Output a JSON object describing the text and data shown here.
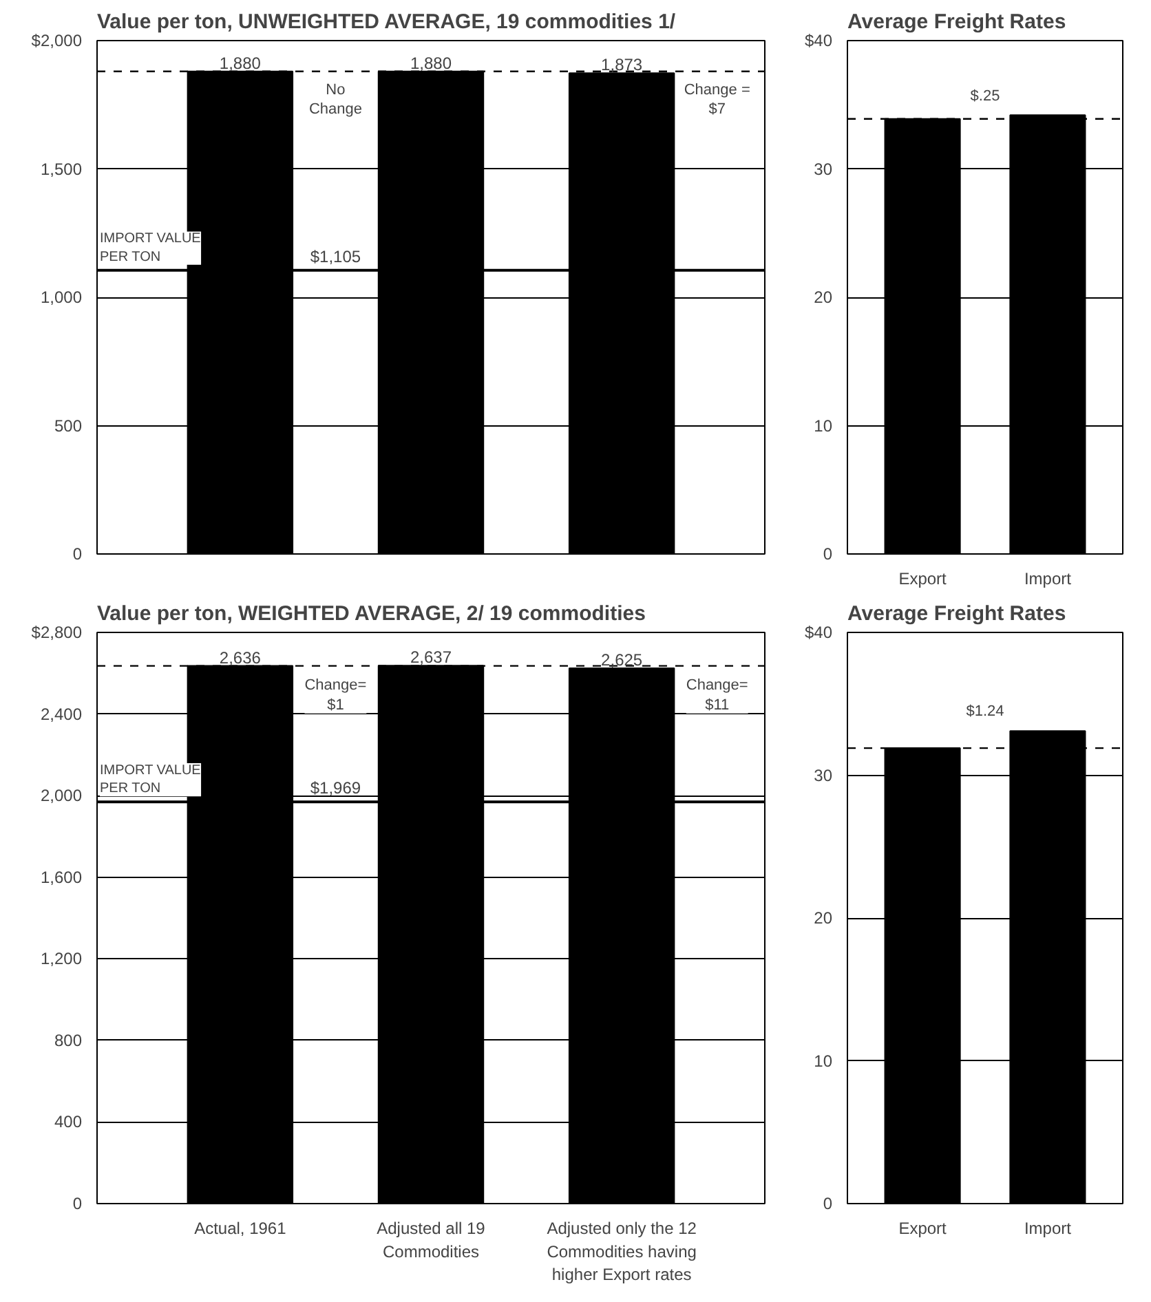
{
  "chart_data": [
    {
      "type": "bar",
      "title": "Value per ton, UNWEIGHTED AVERAGE, 19 commodities 1/",
      "categories": [
        "Actual, 1961",
        "Adjusted all 19 Commodities",
        "Adjusted only the 12 Commodities having higher Export rates"
      ],
      "values": [
        1880,
        1880,
        1873
      ],
      "value_labels": [
        "1,880",
        "1,880",
        "1,873"
      ],
      "color": "#000000",
      "ylim": [
        0,
        2000
      ],
      "yticks": [
        {
          "value": 0,
          "label": "0"
        },
        {
          "value": 500,
          "label": "500"
        },
        {
          "value": 1000,
          "label": "1,000"
        },
        {
          "value": 1500,
          "label": "1,500"
        },
        {
          "value": 2000,
          "label": "$2,000"
        }
      ],
      "grid": "y",
      "tick_labels": "y",
      "ref_lines": [
        {
          "axis": "y",
          "value": 1105,
          "label": "$1,105",
          "color": "#000000",
          "line_style": "solid"
        },
        {
          "axis": "y",
          "value": 1880,
          "color": "#000000",
          "line_style": "dashed"
        }
      ],
      "annotations": [
        {
          "text": "IMPORT VALUE PER TON",
          "y": 1105
        },
        "No Change",
        "Change = $7"
      ]
    },
    {
      "type": "bar",
      "title": "Average Freight Rates",
      "categories": [
        "Export",
        "Import"
      ],
      "values": [
        33.9,
        34.2
      ],
      "color": "#000000",
      "ylim": [
        0,
        40
      ],
      "yticks": [
        {
          "value": 0,
          "label": "0"
        },
        10,
        20,
        30,
        {
          "value": 40,
          "label": "$40"
        }
      ],
      "grid": "y",
      "ref_lines": [
        {
          "axis": "y",
          "value": 33.9,
          "color": "#000000",
          "line_style": "dashed"
        }
      ],
      "annotations": [
        "$.25"
      ]
    },
    {
      "type": "bar",
      "title": "Value per ton, WEIGHTED AVERAGE, 2/ 19 commodities",
      "categories": [
        "Actual, 1961",
        "Adjusted all 19 Commodities",
        "Adjusted only the 12 Commodities having higher Export rates"
      ],
      "values": [
        2636,
        2637,
        2625
      ],
      "value_labels": [
        "2,636",
        "2,637",
        "2,625"
      ],
      "color": "#000000",
      "ylim": [
        0,
        2800
      ],
      "yticks": [
        {
          "value": 0,
          "label": "0"
        },
        {
          "value": 400,
          "label": "400"
        },
        {
          "value": 800,
          "label": "800"
        },
        {
          "value": 1200,
          "label": "1,200"
        },
        {
          "value": 1600,
          "label": "1,600"
        },
        {
          "value": 2000,
          "label": "2,000"
        },
        {
          "value": 2400,
          "label": "2,400"
        },
        {
          "value": 2800,
          "label": "$2,800"
        }
      ],
      "grid": "y",
      "ref_lines": [
        {
          "axis": "y",
          "value": 1969,
          "label": "$1,969",
          "color": "#000000",
          "line_style": "solid"
        },
        {
          "axis": "y",
          "value": 2636,
          "color": "#000000",
          "line_style": "dashed"
        }
      ],
      "annotations": [
        {
          "text": "IMPORT VALUE PER TON",
          "y": 1969
        },
        "Change= $1",
        "Change= $11"
      ]
    },
    {
      "type": "bar",
      "title": "Average Freight Rates",
      "categories": [
        "Export",
        "Import"
      ],
      "values": [
        31.9,
        33.1
      ],
      "color": "#000000",
      "ylim": [
        0,
        40
      ],
      "yticks": [
        {
          "value": 0,
          "label": "0"
        },
        10,
        20,
        30,
        {
          "value": 40,
          "label": "$40"
        }
      ],
      "grid": "y",
      "ref_lines": [
        {
          "axis": "y",
          "value": 31.9,
          "color": "#000000",
          "line_style": "dashed"
        }
      ],
      "annotations": [
        "$1.24"
      ]
    }
  ]
}
